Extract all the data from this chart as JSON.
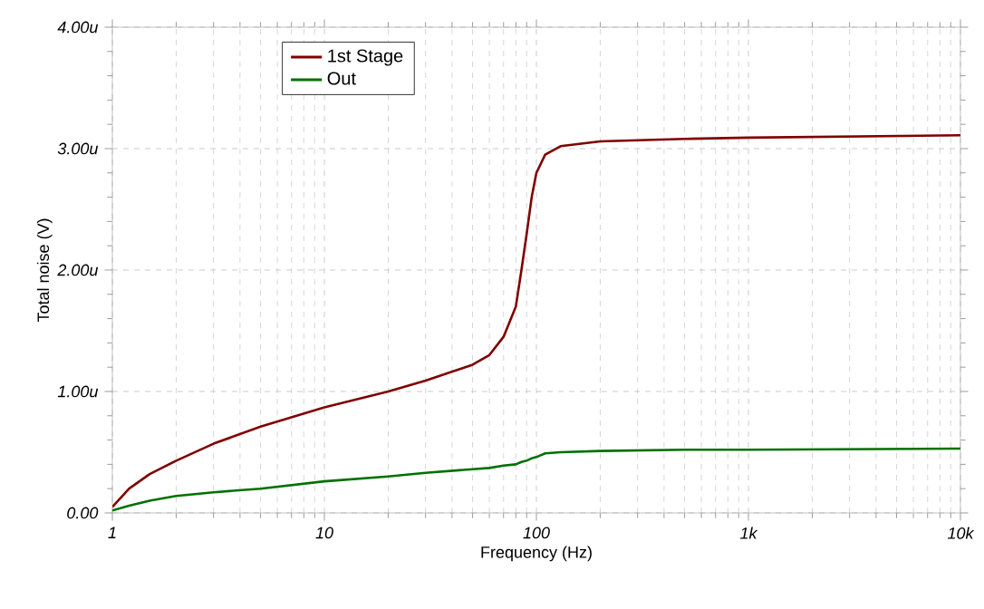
{
  "chart_data": {
    "type": "line",
    "xlabel": "Frequency (Hz)",
    "ylabel": "Total noise (V)",
    "log": "x",
    "grid": true,
    "legend": "top left",
    "marker": "none",
    "line_style": "solid",
    "xlim": [
      1,
      10000
    ],
    "ylim": [
      0,
      4
    ],
    "xticks": [
      1,
      10,
      100,
      {
        "value": 1000,
        "label": "1k"
      },
      {
        "value": 10000,
        "label": "10k"
      }
    ],
    "yticks": [
      {
        "value": 0,
        "label": "0.00"
      },
      {
        "value": 1,
        "label": "1.00u"
      },
      {
        "value": 2,
        "label": "2.00u"
      },
      {
        "value": 3,
        "label": "3.00u"
      },
      {
        "value": 4,
        "label": "4.00u"
      }
    ],
    "x": [
      1,
      1.2,
      1.5,
      2,
      3,
      5,
      10,
      20,
      30,
      50,
      60,
      70,
      80,
      85,
      90,
      95,
      100,
      110,
      130,
      200,
      500,
      1000,
      10000
    ],
    "series": [
      {
        "name": "1st Stage",
        "color": "#800000",
        "values": [
          0.05,
          0.2,
          0.32,
          0.43,
          0.57,
          0.71,
          0.87,
          1.0,
          1.09,
          1.22,
          1.3,
          1.45,
          1.7,
          2.0,
          2.3,
          2.6,
          2.8,
          2.95,
          3.02,
          3.06,
          3.08,
          3.09,
          3.11
        ]
      },
      {
        "name": "Out",
        "color": "#007000",
        "values": [
          0.02,
          0.06,
          0.1,
          0.14,
          0.17,
          0.2,
          0.26,
          0.3,
          0.33,
          0.36,
          0.37,
          0.39,
          0.4,
          0.42,
          0.43,
          0.45,
          0.46,
          0.49,
          0.5,
          0.51,
          0.52,
          0.52,
          0.53
        ]
      }
    ]
  }
}
